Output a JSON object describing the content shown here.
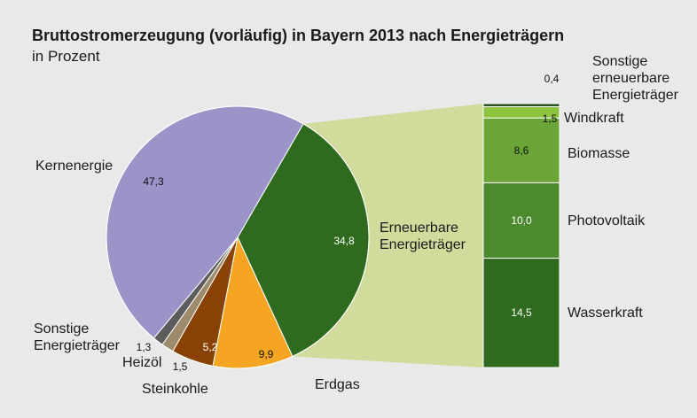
{
  "chart_data": {
    "type": "pie",
    "title": "Bruttostromerzeugung (vorläufig) in Bayern 2013 nach Energieträgern",
    "subtitle": "in Prozent",
    "categories": [
      "Erneuerbare Energieträger",
      "Erdgas",
      "Steinkohle",
      "Heizöl",
      "Sonstige Energieträger",
      "Kernenergie"
    ],
    "values": [
      34.8,
      9.9,
      5.2,
      1.5,
      1.3,
      47.3
    ],
    "value_labels": [
      "34,8",
      "9,9",
      "5,2",
      "1,5",
      "1,3",
      "47,3"
    ],
    "colors": [
      "#2f6b1f",
      "#f5a521",
      "#8a4204",
      "#9d8b6b",
      "#5c5c5c",
      "#9b94c9"
    ],
    "breakdown": {
      "categories": [
        "Wasserkraft",
        "Photovoltaik",
        "Biomasse",
        "Windkraft",
        "Sonstige erneuerbare Energieträger"
      ],
      "values": [
        14.5,
        10.0,
        8.6,
        1.5,
        0.4
      ],
      "value_labels": [
        "14,5",
        "10,0",
        "8,6",
        "1,5",
        "0,4"
      ],
      "colors": [
        "#2f6b1f",
        "#4b8a2d",
        "#6ba437",
        "#8dc53e",
        "#1f4a17"
      ]
    }
  }
}
